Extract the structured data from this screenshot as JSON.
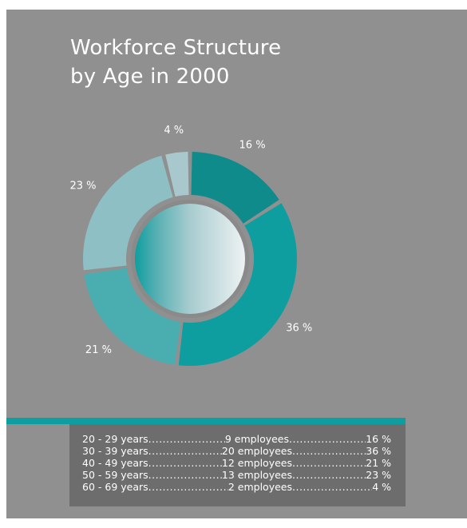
{
  "title_line1": "Workforce Structure",
  "title_line2": "by Age in 2000",
  "chart_data": {
    "type": "pie",
    "title": "Workforce Structure by Age in 2000",
    "categories": [
      "20 - 29 years",
      "30 - 39 years",
      "40 - 49 years",
      "50 - 59 years",
      "60 - 69 years"
    ],
    "values": [
      16,
      36,
      21,
      23,
      4
    ],
    "labels": [
      "16 %",
      "36 %",
      "21 %",
      "23 %",
      "4 %"
    ],
    "colors": [
      "#0f8b8b",
      "#0e9ea0",
      "#4aaeb1",
      "#8ebfc4",
      "#a9c8cd"
    ]
  },
  "table": {
    "rows": [
      {
        "age": "20 - 29 years",
        "employees": "9 employees",
        "pct": "16 %"
      },
      {
        "age": "30 - 39 years",
        "employees": "20 employees",
        "pct": "36 %"
      },
      {
        "age": "40 - 49 years",
        "employees": "12 employees",
        "pct": "21 %"
      },
      {
        "age": "50 - 59 years",
        "employees": "13 employees",
        "pct": "23 %"
      },
      {
        "age": "60 - 69 years",
        "employees": "2 employees",
        "pct": "4 %"
      }
    ]
  }
}
